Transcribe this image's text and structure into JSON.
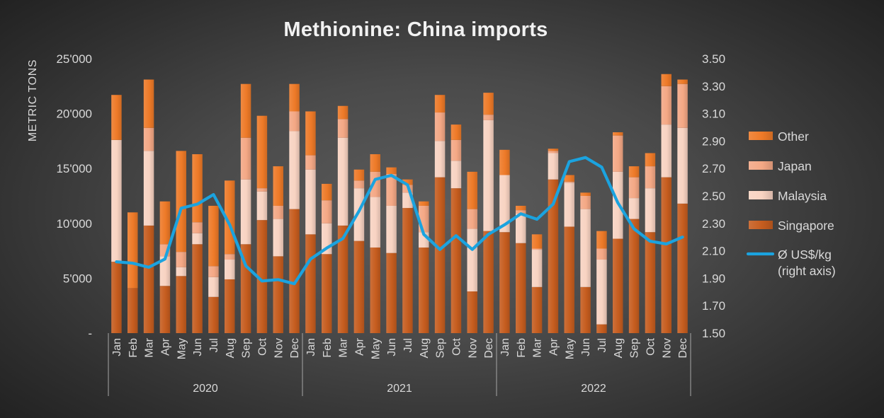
{
  "chart_data": {
    "type": "bar",
    "stacked": true,
    "secondary_type": "line",
    "title": "Methionine: China imports",
    "ylabel": "METRIC TONS",
    "ylim": [
      0,
      25000
    ],
    "y_ticks": [
      0,
      5000,
      10000,
      15000,
      20000,
      25000
    ],
    "y_tick_labels": [
      "-",
      "5'000",
      "10'000",
      "15'000",
      "20'000",
      "25'000"
    ],
    "y2lim": [
      1.5,
      3.5
    ],
    "y2_ticks": [
      1.5,
      1.7,
      1.9,
      2.1,
      2.3,
      2.5,
      2.7,
      2.9,
      3.1,
      3.3,
      3.5
    ],
    "y2_tick_labels": [
      "1.50",
      "1.70",
      "1.90",
      "2.10",
      "2.30",
      "2.50",
      "2.70",
      "2.90",
      "3.10",
      "3.30",
      "3.50"
    ],
    "years": [
      "2020",
      "2021",
      "2022"
    ],
    "months": [
      "Jan",
      "Feb",
      "Mar",
      "Apr",
      "May",
      "Jun",
      "Jul",
      "Aug",
      "Sep",
      "Oct",
      "Nov",
      "Dec"
    ],
    "grid": false,
    "legend_position": "right",
    "series": [
      {
        "name": "Singapore",
        "color": "#c65d1f",
        "values": [
          6500,
          4100,
          9800,
          4300,
          5200,
          8100,
          3300,
          4900,
          8100,
          10300,
          7000,
          11300,
          9000,
          7200,
          9800,
          8400,
          7800,
          7300,
          11400,
          7800,
          14200,
          13200,
          3800,
          9300,
          9200,
          8200,
          4200,
          14000,
          9700,
          4200,
          800,
          8600,
          10400,
          9200,
          14200,
          11800
        ]
      },
      {
        "name": "Malaysia",
        "color": "#f8d3c2",
        "values": [
          11100,
          0,
          6800,
          2700,
          800,
          1000,
          1800,
          1800,
          5900,
          2600,
          3400,
          7100,
          5900,
          2800,
          8000,
          4800,
          4600,
          4300,
          1400,
          1400,
          3300,
          2500,
          5700,
          10100,
          5200,
          2700,
          3400,
          2400,
          4000,
          7100,
          5900,
          6100,
          1900,
          4000,
          4800,
          6900
        ]
      },
      {
        "name": "Japan",
        "color": "#f4a885",
        "values": [
          0,
          0,
          2100,
          1100,
          1400,
          1000,
          1000,
          500,
          3800,
          300,
          1200,
          1800,
          1300,
          2100,
          1700,
          700,
          2300,
          2900,
          700,
          2400,
          2600,
          1900,
          1800,
          500,
          0,
          300,
          100,
          200,
          100,
          1200,
          1000,
          3300,
          1900,
          2000,
          3500,
          4000
        ]
      },
      {
        "name": "Other",
        "color": "#ee7a28",
        "values": [
          4100,
          6900,
          4400,
          3900,
          9200,
          6200,
          5500,
          6700,
          4900,
          6600,
          3600,
          2500,
          4000,
          1500,
          1200,
          1000,
          1600,
          600,
          500,
          400,
          1600,
          1400,
          3400,
          2000,
          2300,
          400,
          1300,
          200,
          600,
          300,
          1600,
          300,
          1000,
          1200,
          1100,
          400
        ]
      }
    ],
    "line_series": {
      "name": "Ø US$/kg",
      "note": "(right axis)",
      "axis": "right",
      "color": "#1ba3df",
      "values": [
        2.02,
        2.01,
        1.98,
        2.04,
        2.41,
        2.44,
        2.51,
        2.29,
        1.99,
        1.88,
        1.89,
        1.86,
        2.04,
        2.12,
        2.19,
        2.39,
        2.62,
        2.65,
        2.58,
        2.22,
        2.11,
        2.21,
        2.11,
        2.22,
        2.29,
        2.37,
        2.33,
        2.44,
        2.75,
        2.78,
        2.71,
        2.45,
        2.26,
        2.17,
        2.15,
        2.2
      ]
    }
  }
}
